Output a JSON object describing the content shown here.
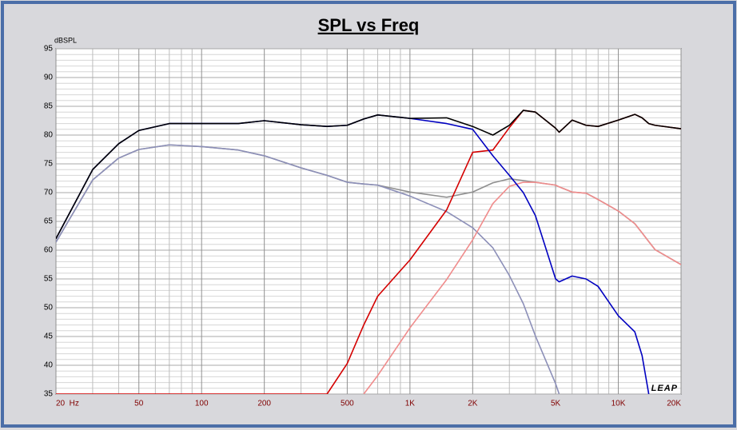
{
  "chart_data": {
    "type": "line",
    "title": "SPL vs Freq",
    "ylabel": "dBSPL",
    "watermark": "LEAP",
    "xlog": true,
    "xlim": [
      20,
      20000
    ],
    "ylim": [
      35,
      95
    ],
    "grid": true,
    "xticks": [
      {
        "value": 20,
        "label": "20  Hz"
      },
      50,
      100,
      200,
      500,
      {
        "value": 1000,
        "label": "1K"
      },
      {
        "value": 2000,
        "label": "2K"
      },
      {
        "value": 5000,
        "label": "5K"
      },
      {
        "value": 10000,
        "label": "10K"
      },
      {
        "value": 20000,
        "label": "20K"
      }
    ],
    "xminorticks": [
      30,
      40,
      60,
      70,
      80,
      90,
      300,
      400,
      600,
      700,
      800,
      900,
      3000,
      4000,
      6000,
      7000,
      8000,
      9000
    ],
    "yticks": [
      35,
      40,
      45,
      50,
      55,
      60,
      65,
      70,
      75,
      80,
      85,
      90,
      95
    ],
    "yminorticks": [
      36,
      37,
      38,
      39,
      41,
      42,
      43,
      44,
      46,
      47,
      48,
      49,
      51,
      52,
      53,
      54,
      56,
      57,
      58,
      59,
      61,
      62,
      63,
      64,
      66,
      67,
      68,
      69,
      71,
      72,
      73,
      74,
      76,
      77,
      78,
      79,
      81,
      82,
      83,
      84,
      86,
      87,
      88,
      89,
      91,
      92,
      93,
      94
    ],
    "x": [
      20,
      30,
      40,
      50,
      70,
      100,
      150,
      200,
      300,
      400,
      500,
      600,
      700,
      1000,
      1500,
      2000,
      2500,
      3000,
      3500,
      4000,
      5000,
      5200,
      6000,
      7000,
      8000,
      10000,
      12000,
      13000,
      14000,
      15000,
      20000
    ],
    "series": [
      {
        "color": "#8f8f8f",
        "values": [
          61.4,
          72.2,
          76,
          77.5,
          78.3,
          78,
          77.4,
          76.4,
          74.3,
          73,
          71.8,
          71.5,
          71.3,
          70.1,
          69.2,
          70.1,
          71.7,
          72.4,
          72.1,
          71.8,
          71.3,
          71,
          70.1,
          69.9,
          68.8,
          66.8,
          64.6,
          63,
          61.5,
          60.1,
          57.5
        ]
      },
      {
        "color": "#8c8fb8",
        "values": [
          61.4,
          72.2,
          76,
          77.5,
          78.3,
          78,
          77.4,
          76.4,
          74.3,
          73,
          71.8,
          71.5,
          71.3,
          69.4,
          66.7,
          63.9,
          60.4,
          55.6,
          50.7,
          45.1,
          36.8,
          35,
          null,
          null,
          null,
          null,
          null,
          null,
          null,
          null,
          null
        ]
      },
      {
        "color": "#f08c8c",
        "values": [
          null,
          null,
          null,
          null,
          null,
          null,
          null,
          null,
          null,
          null,
          null,
          35,
          38.2,
          46.5,
          54.9,
          61.8,
          68.1,
          71.1,
          71.8,
          71.8,
          71.3,
          71,
          70.1,
          69.9,
          68.8,
          66.8,
          64.6,
          63,
          61.5,
          60.1,
          57.5
        ]
      },
      {
        "color": "#d40000",
        "values": [
          35,
          35,
          35,
          35,
          35,
          35,
          35,
          35,
          35,
          35,
          40.3,
          47,
          52,
          58.3,
          67,
          77,
          77.4,
          81.3,
          84.3,
          84,
          81.2,
          80.5,
          82.6,
          81.7,
          81.5,
          82.6,
          83.6,
          83,
          82,
          81.7,
          81.1
        ]
      },
      {
        "color": "#0000c0",
        "values": [
          62,
          74,
          78.5,
          80.8,
          82,
          82,
          82,
          82.5,
          81.8,
          81.5,
          81.7,
          82.8,
          83.5,
          82.9,
          82,
          81,
          76.4,
          73,
          70,
          66,
          55,
          54.5,
          55.5,
          55,
          53.7,
          48.6,
          45.8,
          41.7,
          35,
          null,
          null
        ]
      },
      {
        "color": "#000000",
        "values": [
          62,
          74,
          78.5,
          80.8,
          82,
          82,
          82,
          82.5,
          81.8,
          81.5,
          81.7,
          82.8,
          83.5,
          82.9,
          83,
          81.5,
          80,
          81.7,
          84.3,
          84,
          81.2,
          80.5,
          82.6,
          81.7,
          81.5,
          82.6,
          83.6,
          83,
          82,
          81.7,
          81.1
        ]
      }
    ]
  }
}
